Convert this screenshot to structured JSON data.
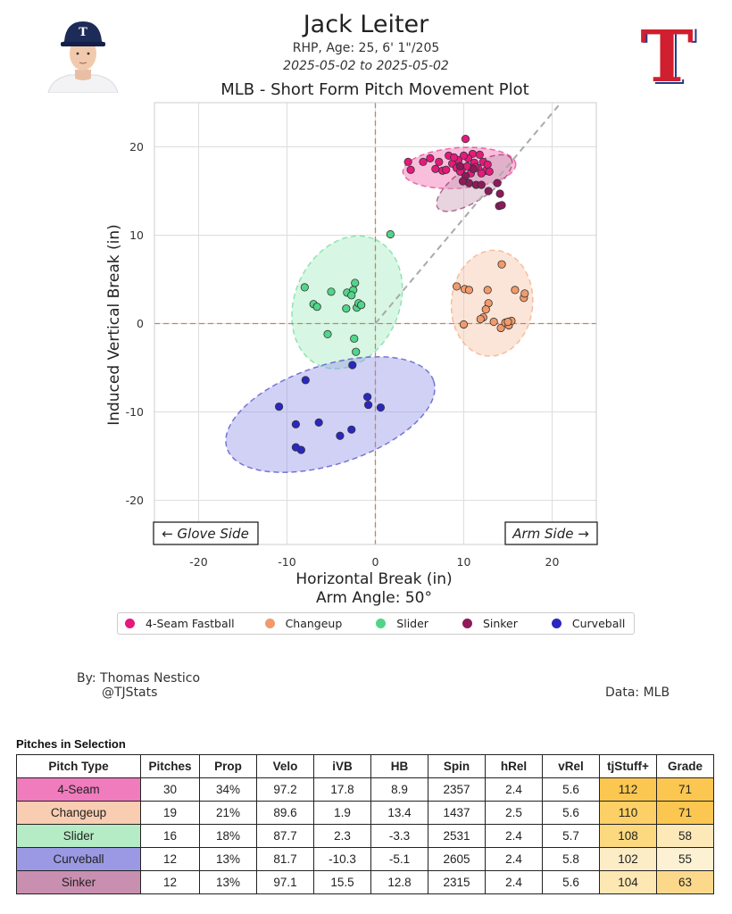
{
  "header": {
    "name": "Jack Leiter",
    "subtitle": "RHP, Age: 25, 6' 1\"/205",
    "date_range": "2025-05-02 to 2025-05-02"
  },
  "plot": {
    "title": "MLB - Short Form Pitch Movement Plot",
    "xlabel": "Horizontal Break (in)",
    "ylabel": "Induced Vertical Break (in)",
    "arm_angle": "Arm Angle: 50°",
    "glove_side": "← Glove Side",
    "arm_side": "Arm Side →"
  },
  "legend": {
    "placement": "below",
    "items": [
      {
        "label": "4-Seam Fastball",
        "color": "#e6197d"
      },
      {
        "label": "Changeup",
        "color": "#f29a6b"
      },
      {
        "label": "Slider",
        "color": "#52d48a"
      },
      {
        "label": "Sinker",
        "color": "#8e1a5c"
      },
      {
        "label": "Curveball",
        "color": "#2a27c0"
      }
    ]
  },
  "chart_data": {
    "type": "scatter",
    "xlim": [
      -25,
      25
    ],
    "ylim": [
      -25,
      25
    ],
    "xticks": [
      -20,
      -10,
      0,
      10,
      20
    ],
    "yticks": [
      -20,
      -10,
      0,
      10,
      20
    ],
    "grid": true,
    "series": [
      {
        "name": "4-Seam Fastball",
        "color": "#e6197d",
        "fill": "#ef6fb0",
        "ellipse": {
          "cx": 9.5,
          "cy": 17.6,
          "rx": 6.4,
          "ry": 2.3,
          "angle": -4
        },
        "points": [
          [
            3.7,
            18.3
          ],
          [
            4.0,
            17.4
          ],
          [
            5.4,
            18.3
          ],
          [
            6.2,
            18.7
          ],
          [
            6.8,
            17.5
          ],
          [
            7.2,
            18.3
          ],
          [
            7.6,
            17.3
          ],
          [
            8.0,
            17.4
          ],
          [
            8.3,
            19.0
          ],
          [
            8.7,
            18.1
          ],
          [
            9.2,
            17.6
          ],
          [
            9.4,
            18.5
          ],
          [
            9.8,
            17.5
          ],
          [
            10.2,
            20.9
          ],
          [
            10.4,
            17.8
          ],
          [
            10.8,
            17.0
          ],
          [
            11.2,
            18.2
          ],
          [
            11.6,
            17.6
          ],
          [
            12.2,
            18.3
          ],
          [
            12.5,
            17.3
          ],
          [
            12.7,
            18.0
          ],
          [
            11.0,
            19.2
          ],
          [
            11.8,
            19.1
          ],
          [
            10.5,
            18.7
          ],
          [
            9.6,
            17.2
          ],
          [
            8.9,
            18.8
          ],
          [
            12.9,
            17.2
          ],
          [
            11.3,
            17.7
          ],
          [
            10.0,
            19.0
          ],
          [
            12.0,
            17.0
          ]
        ]
      },
      {
        "name": "Changeup",
        "color": "#f29a6b",
        "fill": "#f7c6a8",
        "ellipse": {
          "cx": 13.2,
          "cy": 2.3,
          "rx": 4.6,
          "ry": 6.0,
          "angle": 5
        },
        "points": [
          [
            9.2,
            4.2
          ],
          [
            10.1,
            3.9
          ],
          [
            10.6,
            3.8
          ],
          [
            12.7,
            3.8
          ],
          [
            12.8,
            2.3
          ],
          [
            12.5,
            1.6
          ],
          [
            12.2,
            0.7
          ],
          [
            11.9,
            0.5
          ],
          [
            13.4,
            0.2
          ],
          [
            14.2,
            -0.5
          ],
          [
            14.7,
            0.1
          ],
          [
            15.1,
            -0.2
          ],
          [
            15.4,
            0.3
          ],
          [
            15.8,
            3.8
          ],
          [
            16.8,
            2.9
          ],
          [
            16.9,
            3.4
          ],
          [
            14.3,
            6.7
          ],
          [
            15.0,
            0.2
          ],
          [
            10.0,
            -0.1
          ]
        ]
      },
      {
        "name": "Slider",
        "color": "#52d48a",
        "fill": "#a8ecc4",
        "ellipse": {
          "cx": -3.2,
          "cy": 2.4,
          "rx": 7.8,
          "ry": 5.9,
          "angle": -66
        },
        "points": [
          [
            1.7,
            10.1
          ],
          [
            -8.0,
            4.1
          ],
          [
            -7.0,
            2.2
          ],
          [
            -6.6,
            1.9
          ],
          [
            -5.0,
            3.6
          ],
          [
            -3.3,
            1.7
          ],
          [
            -3.2,
            3.5
          ],
          [
            -2.5,
            3.8
          ],
          [
            -2.3,
            4.6
          ],
          [
            -2.1,
            1.8
          ],
          [
            -1.9,
            2.3
          ],
          [
            -1.6,
            2.1
          ],
          [
            -5.4,
            -1.2
          ],
          [
            -2.4,
            -1.7
          ],
          [
            -2.2,
            -3.2
          ],
          [
            -2.7,
            3.2
          ]
        ]
      },
      {
        "name": "Sinker",
        "color": "#8e1a5c",
        "fill": "#caa0b8",
        "ellipse": {
          "cx": 11.2,
          "cy": 15.9,
          "rx": 5.0,
          "ry": 1.9,
          "angle": -34
        },
        "points": [
          [
            9.6,
            17.8
          ],
          [
            10.2,
            16.7
          ],
          [
            10.6,
            15.9
          ],
          [
            11.4,
            15.7
          ],
          [
            12.8,
            15.0
          ],
          [
            13.8,
            15.9
          ],
          [
            14.1,
            14.7
          ],
          [
            14.0,
            13.3
          ],
          [
            14.3,
            13.4
          ],
          [
            12.0,
            15.7
          ],
          [
            11.1,
            17.5
          ],
          [
            9.9,
            16.1
          ]
        ]
      },
      {
        "name": "Curveball",
        "color": "#2a27c0",
        "fill": "#9a98e8",
        "ellipse": {
          "cx": -5.1,
          "cy": -10.3,
          "rx": 12.3,
          "ry": 5.6,
          "angle": -18
        },
        "points": [
          [
            -10.9,
            -9.4
          ],
          [
            -9.0,
            -11.4
          ],
          [
            -8.4,
            -14.3
          ],
          [
            -7.9,
            -6.4
          ],
          [
            -6.4,
            -11.2
          ],
          [
            -4.0,
            -12.7
          ],
          [
            -2.7,
            -12.0
          ],
          [
            -2.6,
            -4.7
          ],
          [
            -0.9,
            -8.3
          ],
          [
            -0.8,
            -9.2
          ],
          [
            0.6,
            -9.5
          ],
          [
            -9.0,
            -14.0
          ]
        ]
      }
    ]
  },
  "credits": {
    "by": "By: Thomas Nestico",
    "handle": "@TJStats",
    "data": "Data: MLB"
  },
  "table": {
    "title": "Pitches in Selection",
    "headers": [
      "Pitch Type",
      "Pitches",
      "Prop",
      "Velo",
      "iVB",
      "HB",
      "Spin",
      "hRel",
      "vRel",
      "tjStuff+",
      "Grade"
    ],
    "rows": [
      {
        "color": "#f07bbd",
        "cells": [
          "4-Seam",
          "30",
          "34%",
          "97.2",
          "17.8",
          "8.9",
          "2357",
          "2.4",
          "5.6",
          "112",
          "71"
        ],
        "stuff_color": "#fbc750",
        "grade_color": "#fbc750"
      },
      {
        "color": "#f9cdb2",
        "cells": [
          "Changeup",
          "19",
          "21%",
          "89.6",
          "1.9",
          "13.4",
          "1437",
          "2.5",
          "5.6",
          "110",
          "71"
        ],
        "stuff_color": "#fcd066",
        "grade_color": "#fbc750"
      },
      {
        "color": "#b5ecc5",
        "cells": [
          "Slider",
          "16",
          "18%",
          "87.7",
          "2.3",
          "-3.3",
          "2531",
          "2.4",
          "5.7",
          "108",
          "58"
        ],
        "stuff_color": "#fcd97e",
        "grade_color": "#fde9b8"
      },
      {
        "color": "#9b99e3",
        "cells": [
          "Curveball",
          "12",
          "13%",
          "81.7",
          "-10.3",
          "-5.1",
          "2605",
          "2.4",
          "5.8",
          "102",
          "55"
        ],
        "stuff_color": "#fdedc6",
        "grade_color": "#fdf1d4"
      },
      {
        "color": "#c98fb0",
        "cells": [
          "Sinker",
          "12",
          "13%",
          "97.1",
          "15.5",
          "12.8",
          "2315",
          "2.4",
          "5.6",
          "104",
          "63"
        ],
        "stuff_color": "#fde7b2",
        "grade_color": "#fcd98a"
      }
    ]
  }
}
